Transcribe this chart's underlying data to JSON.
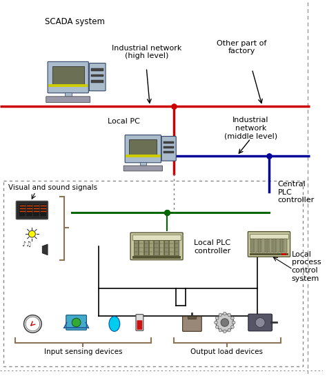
{
  "bg_color": "#ffffff",
  "fig_width": 4.74,
  "fig_height": 5.45,
  "dpi": 100,
  "red_line_color": "#cc0000",
  "blue_line_color": "#000099",
  "green_line_color": "#006600",
  "black_line_color": "#000000",
  "text_color": "#000000",
  "labels": {
    "scada": "SCADA system",
    "industrial_high": "Industrial network\n(high level)",
    "other_factory": "Other part of\nfactory",
    "local_pc": "Local PC",
    "industrial_mid": "Industrial\nnetwork\n(middle level)",
    "central_plc": "Central\nPLC\ncontroller",
    "visual_sound": "Visual and sound signals",
    "local_plc": "Local PLC\ncontroller",
    "local_process": "Local\nprocess\ncontrol\nsystem",
    "input_sensing": "Input sensing devices",
    "output_load": "Output load devices"
  }
}
